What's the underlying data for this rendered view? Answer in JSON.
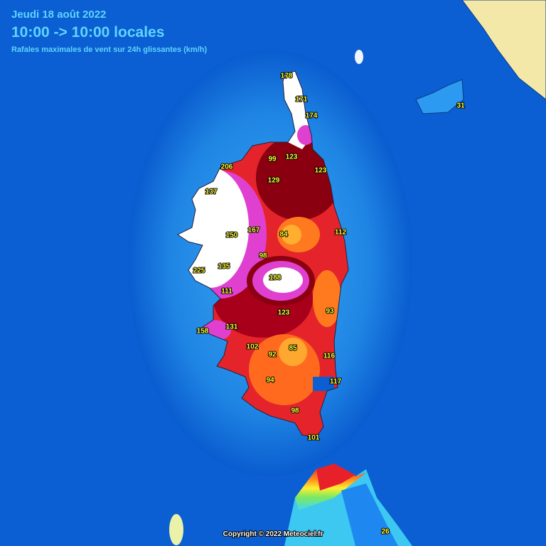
{
  "header": {
    "date": "Jeudi 18 août 2022",
    "period": "10:00 -> 10:00 locales",
    "subtitle": "Rafales maximales de vent sur 24h glissantes (km/h)"
  },
  "stations": [
    {
      "value": 178
    },
    {
      "value": 171
    },
    {
      "value": 174
    },
    {
      "value": 99
    },
    {
      "value": 123
    },
    {
      "value": 123
    },
    {
      "value": 206
    },
    {
      "value": 129
    },
    {
      "value": 137
    },
    {
      "value": 167
    },
    {
      "value": 150
    },
    {
      "value": 84
    },
    {
      "value": 112
    },
    {
      "value": 98
    },
    {
      "value": 225
    },
    {
      "value": 135
    },
    {
      "value": 188
    },
    {
      "value": 111
    },
    {
      "value": 123
    },
    {
      "value": 93
    },
    {
      "value": 158
    },
    {
      "value": 131
    },
    {
      "value": 102
    },
    {
      "value": 92
    },
    {
      "value": 85
    },
    {
      "value": 116
    },
    {
      "value": 94
    },
    {
      "value": 117
    },
    {
      "value": 98
    },
    {
      "value": 101
    },
    {
      "value": 31
    },
    {
      "value": 26
    }
  ],
  "footer": {
    "copyright": "Copyright © 2022 Meteociel.fr"
  }
}
